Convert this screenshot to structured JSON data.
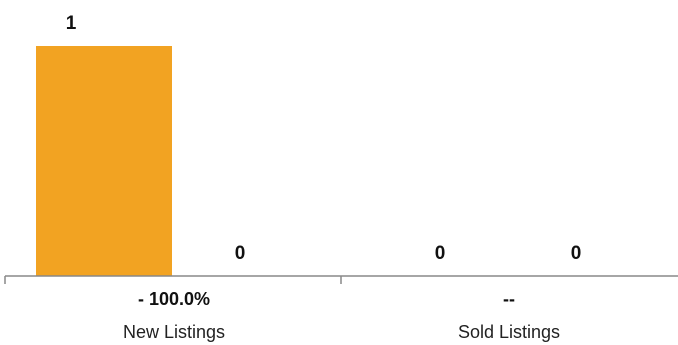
{
  "chart_data": {
    "type": "bar",
    "categories": [
      "New Listings",
      "Sold Listings"
    ],
    "series": [
      {
        "values": [
          1,
          0
        ],
        "color": "#F2A322"
      },
      {
        "values": [
          0,
          0
        ],
        "color": "#F2A322"
      }
    ],
    "change_labels": [
      "- 100.0%",
      "--"
    ],
    "value_labels": [
      [
        "1",
        "0"
      ],
      [
        "0",
        "0"
      ]
    ],
    "ylim": [
      0,
      1
    ],
    "grid": false,
    "axis_color": "#888888"
  }
}
